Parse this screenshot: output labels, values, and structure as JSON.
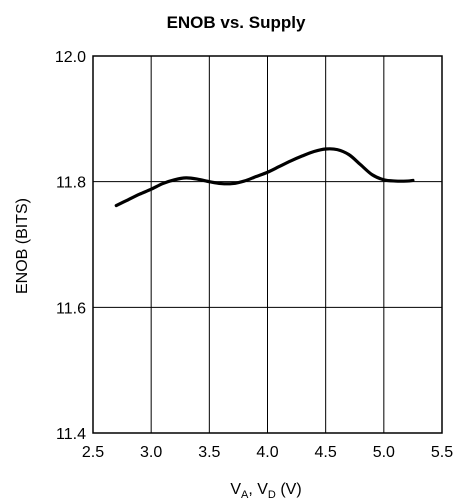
{
  "chart_data": {
    "type": "line",
    "title": "ENOB vs. Supply",
    "ylabel": "ENOB (BITS)",
    "xlabel": {
      "v_a": "V",
      "sub_a": "A",
      "sep": ", ",
      "v_d": "V",
      "sub_d": "D",
      "unit": " (V)"
    },
    "xlim": [
      2.5,
      5.5
    ],
    "ylim": [
      11.4,
      12.0
    ],
    "x_ticks": [
      "2.5",
      "3.0",
      "3.5",
      "4.0",
      "4.5",
      "5.0",
      "5.5"
    ],
    "y_ticks": [
      "11.4",
      "11.6",
      "11.8",
      "12.0"
    ],
    "grid": true,
    "series": [
      {
        "color": "#000000",
        "x": [
          2.7,
          2.8,
          2.9,
          3.0,
          3.1,
          3.2,
          3.3,
          3.4,
          3.5,
          3.6,
          3.7,
          3.8,
          3.9,
          4.0,
          4.1,
          4.2,
          4.3,
          4.4,
          4.5,
          4.6,
          4.7,
          4.8,
          4.9,
          5.0,
          5.1,
          5.2,
          5.25
        ],
        "y": [
          11.762,
          11.771,
          11.78,
          11.788,
          11.797,
          11.803,
          11.806,
          11.804,
          11.8,
          11.797,
          11.797,
          11.801,
          11.808,
          11.815,
          11.824,
          11.833,
          11.841,
          11.848,
          11.852,
          11.851,
          11.843,
          11.827,
          11.811,
          11.803,
          11.801,
          11.801,
          11.802
        ]
      }
    ]
  }
}
